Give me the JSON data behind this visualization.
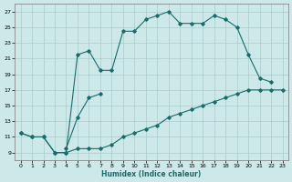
{
  "bg_color": "#cce8e8",
  "grid_color": "#aacccc",
  "line_color": "#1a6b6b",
  "xlabel": "Humidex (Indice chaleur)",
  "xlim": [
    -0.5,
    23.5
  ],
  "ylim": [
    8.0,
    28.0
  ],
  "xticks": [
    0,
    1,
    2,
    3,
    4,
    5,
    6,
    7,
    8,
    9,
    10,
    11,
    12,
    13,
    14,
    15,
    16,
    17,
    18,
    19,
    20,
    21,
    22,
    23
  ],
  "yticks": [
    9,
    11,
    13,
    15,
    17,
    19,
    21,
    23,
    25,
    27
  ],
  "line_bottom": {
    "x": [
      0,
      1,
      2,
      3,
      4,
      5,
      6,
      7,
      8,
      9,
      10,
      11,
      12,
      13,
      14,
      15,
      16,
      17,
      18,
      19,
      20,
      21,
      22,
      23
    ],
    "y": [
      11.5,
      11.0,
      11.0,
      9.0,
      9.0,
      9.5,
      9.5,
      9.5,
      10.0,
      11.0,
      11.5,
      12.0,
      12.5,
      13.5,
      14.0,
      14.5,
      15.0,
      15.5,
      16.0,
      16.5,
      17.0,
      17.0,
      17.0,
      17.0
    ]
  },
  "line_top": {
    "x": [
      0,
      1,
      2,
      3,
      4,
      5,
      6,
      7,
      8,
      9,
      10,
      11,
      12,
      13,
      14,
      15,
      16,
      17,
      18,
      19,
      20,
      21,
      22
    ],
    "y": [
      11.5,
      11.0,
      11.0,
      9.0,
      9.0,
      21.5,
      22.0,
      19.5,
      19.5,
      24.5,
      24.5,
      26.0,
      26.5,
      27.0,
      25.5,
      25.5,
      25.5,
      26.5,
      26.0,
      25.0,
      21.5,
      18.5,
      18.0
    ]
  },
  "line_mid": {
    "x": [
      4,
      5,
      6,
      7
    ],
    "y": [
      9.5,
      13.5,
      16.0,
      16.5
    ]
  }
}
